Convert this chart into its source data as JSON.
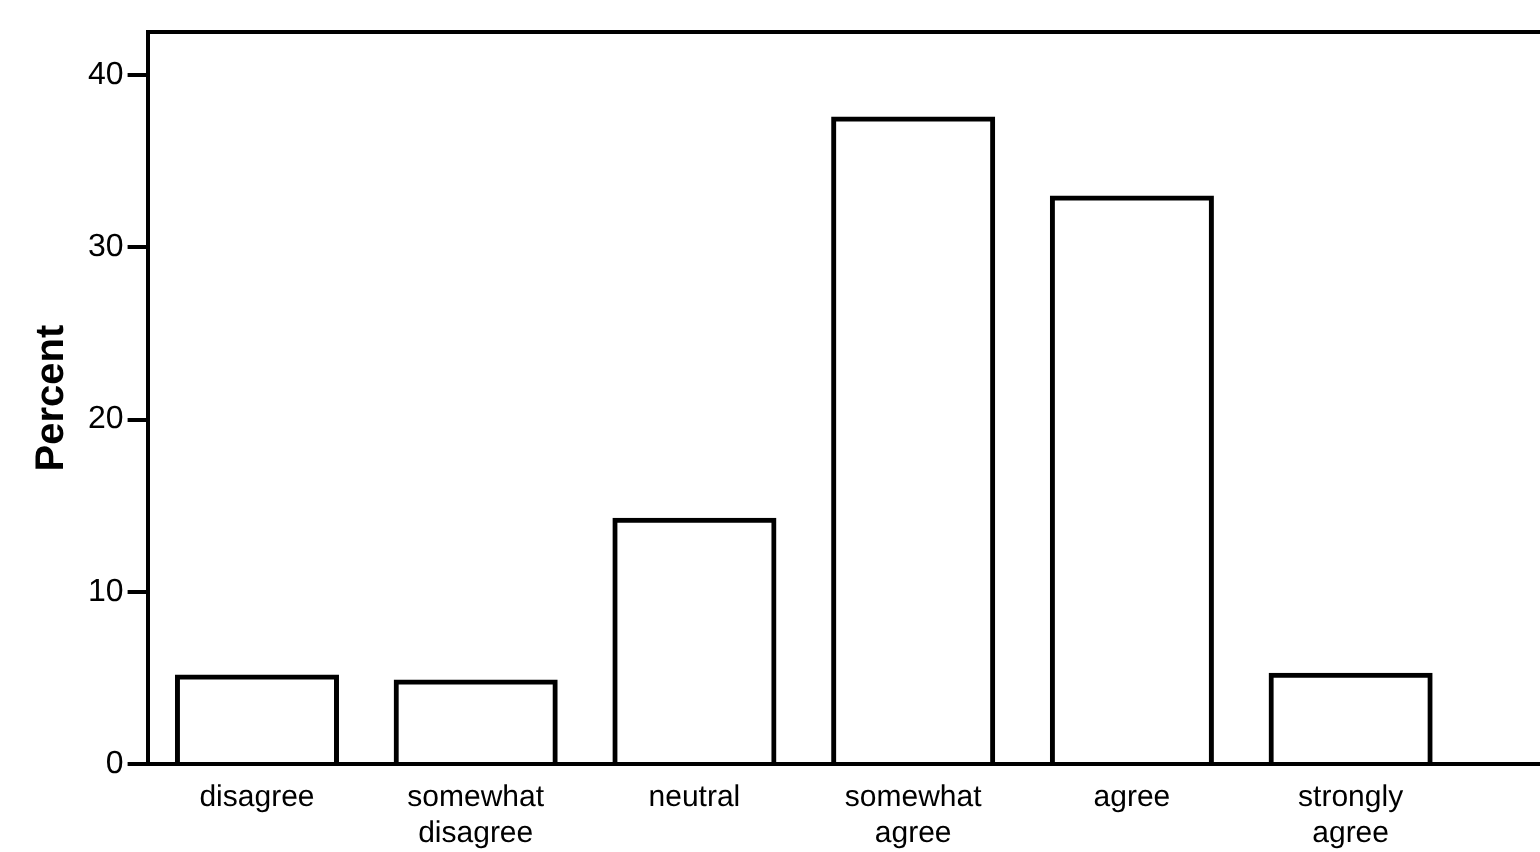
{
  "chart_data": {
    "type": "bar",
    "ylabel": "Percent",
    "categories": [
      "disagree",
      "somewhat disagree",
      "neutral",
      "somewhat agree",
      "agree",
      "strongly agree"
    ],
    "values": [
      5.2,
      4.9,
      14.3,
      37.6,
      33.0,
      5.3
    ],
    "color": "#000000",
    "ylim": [
      0,
      42.5
    ],
    "yticks": [
      0,
      10,
      20,
      30,
      40
    ],
    "grid": false,
    "legend": false
  }
}
